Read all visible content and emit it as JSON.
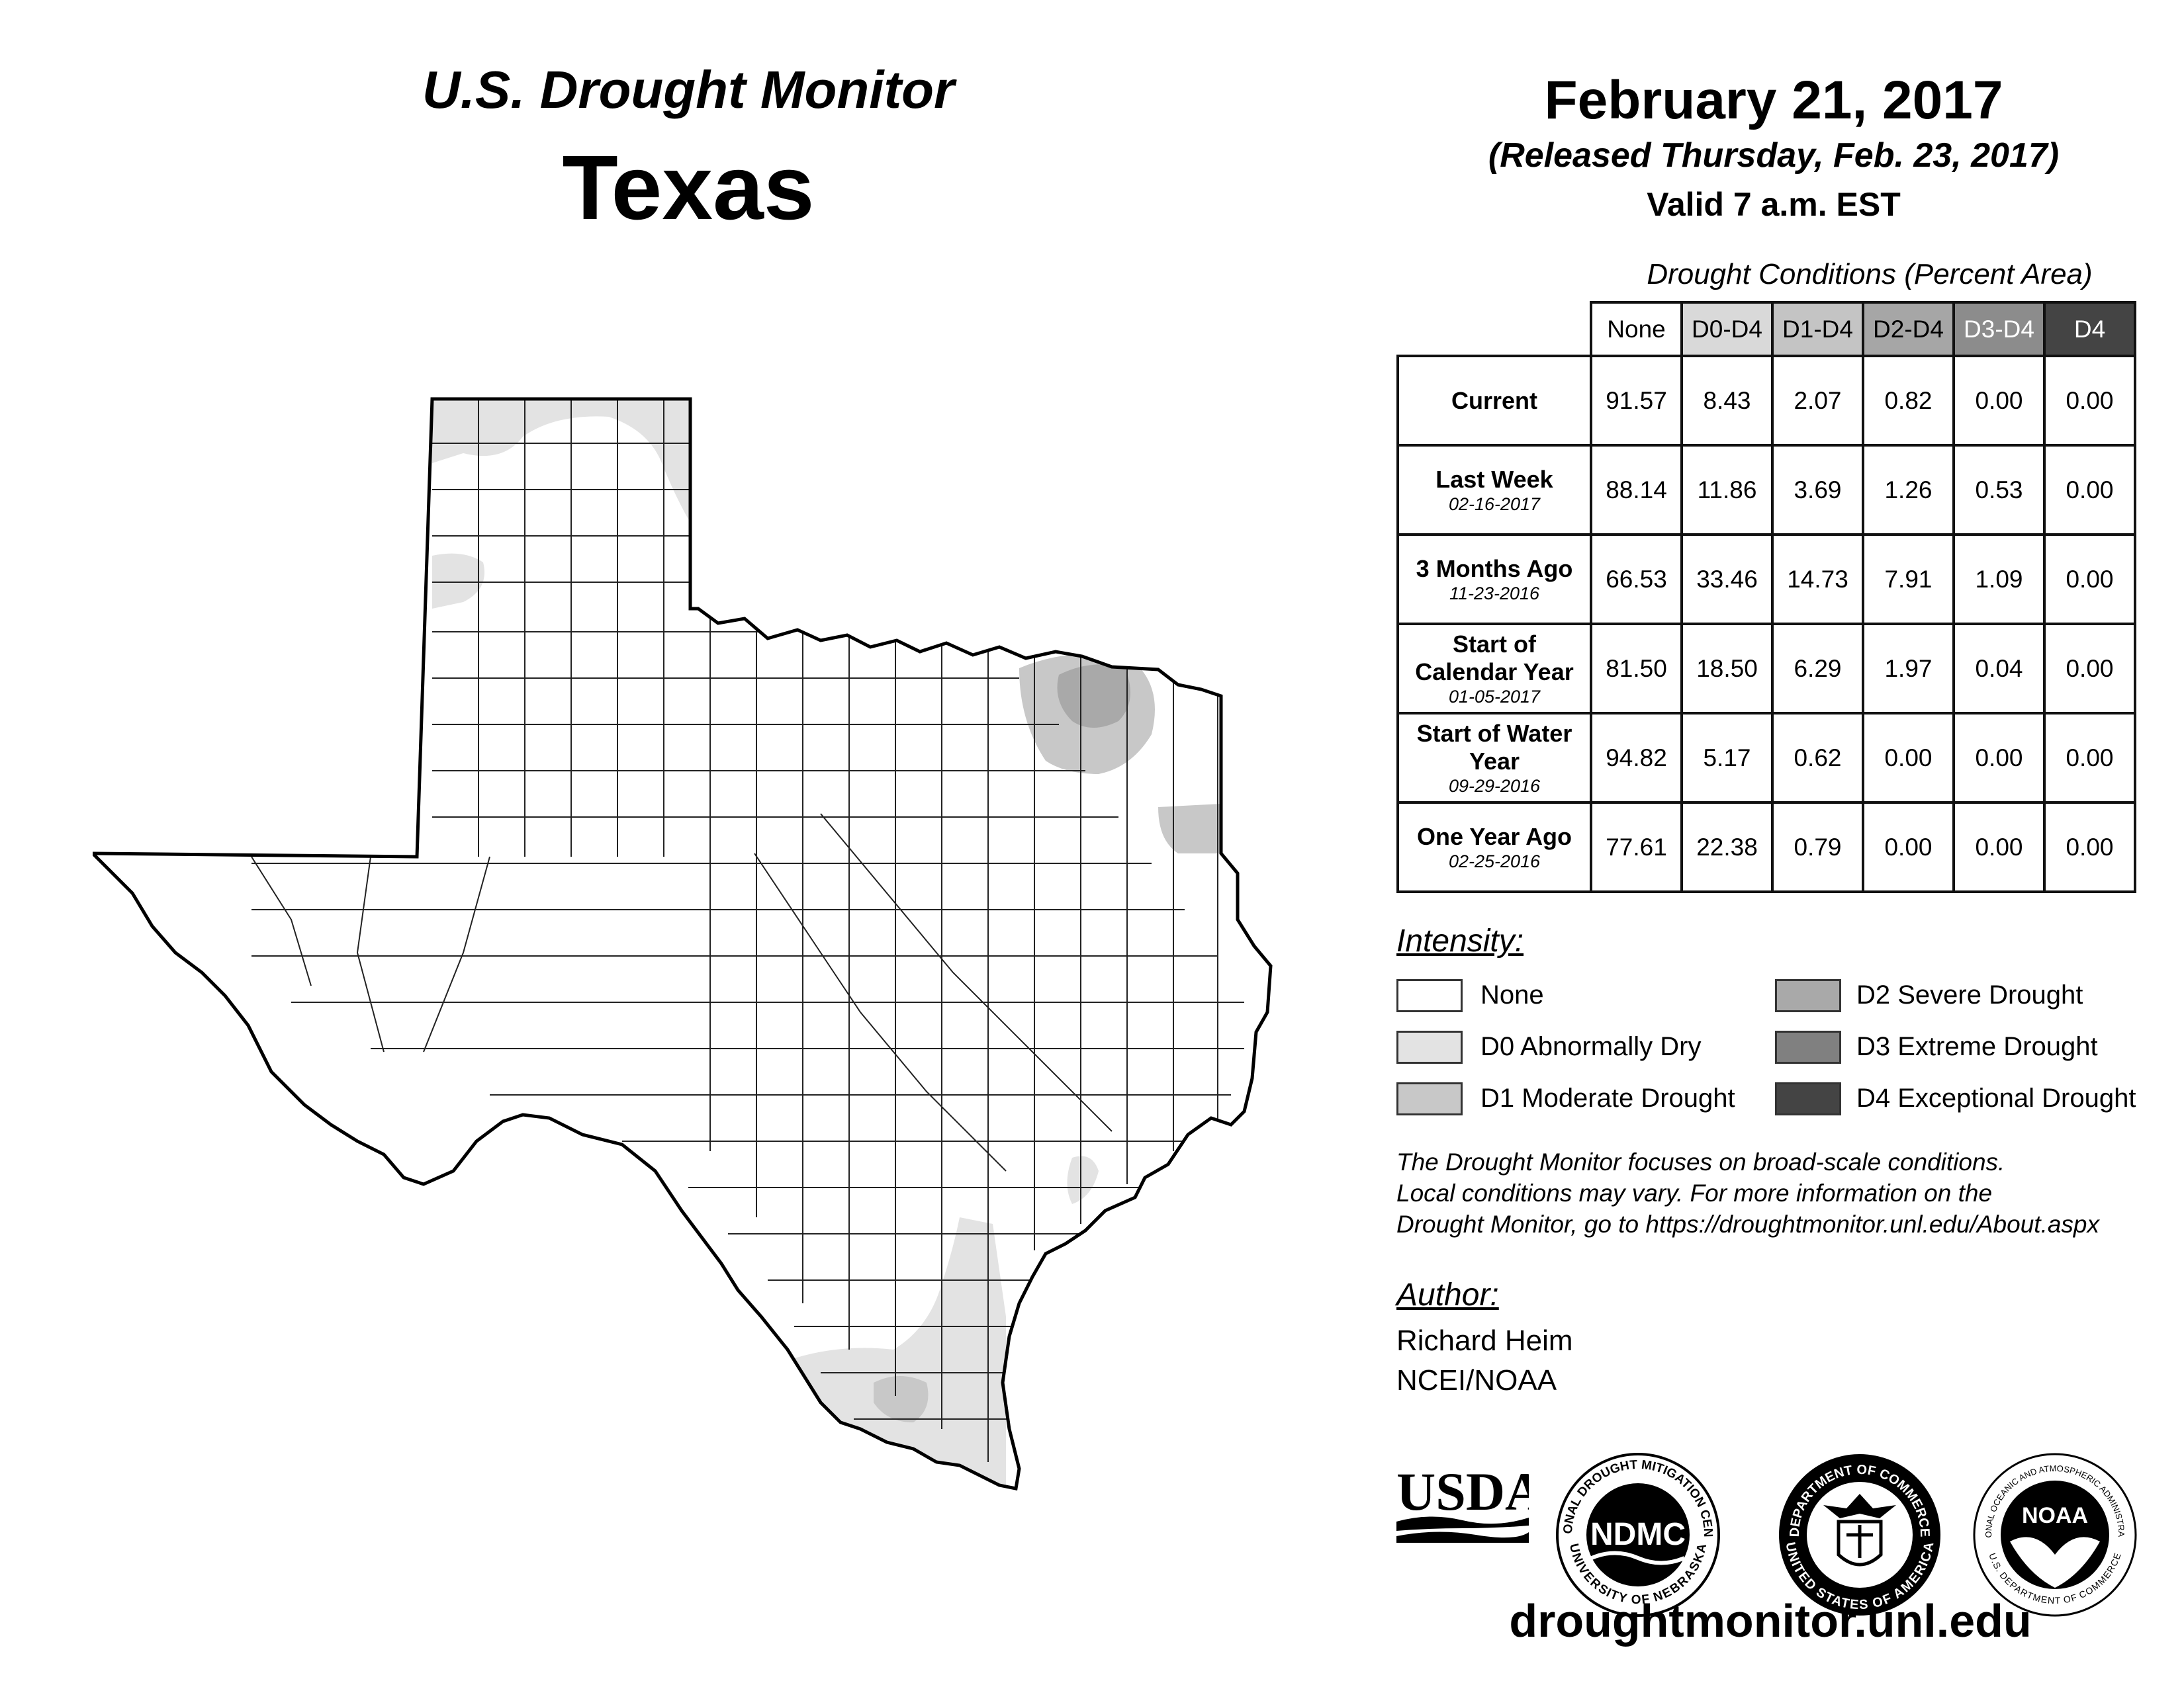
{
  "header": {
    "monitor_title": "U.S. Drought Monitor",
    "state": "Texas",
    "map_date": "February 21, 2017",
    "released": "(Released Thursday, Feb. 23, 2017)",
    "valid": "Valid 7 a.m. EST"
  },
  "table": {
    "caption": "Drought Conditions (Percent Area)",
    "columns": [
      "None",
      "D0-D4",
      "D1-D4",
      "D2-D4",
      "D3-D4",
      "D4"
    ],
    "column_colors": [
      "#ffffff",
      "#d9d9d9",
      "#c4c4c4",
      "#a6a6a6",
      "#8c8c8c",
      "#444444"
    ],
    "rows": [
      {
        "label": "Current",
        "date": "",
        "values": [
          "91.57",
          "8.43",
          "2.07",
          "0.82",
          "0.00",
          "0.00"
        ]
      },
      {
        "label": "Last Week",
        "date": "02-16-2017",
        "values": [
          "88.14",
          "11.86",
          "3.69",
          "1.26",
          "0.53",
          "0.00"
        ]
      },
      {
        "label": "3 Months Ago",
        "date": "11-23-2016",
        "values": [
          "66.53",
          "33.46",
          "14.73",
          "7.91",
          "1.09",
          "0.00"
        ]
      },
      {
        "label": "Start of Calendar Year",
        "date": "01-05-2017",
        "values": [
          "81.50",
          "18.50",
          "6.29",
          "1.97",
          "0.04",
          "0.00"
        ]
      },
      {
        "label": "Start of Water Year",
        "date": "09-29-2016",
        "values": [
          "94.82",
          "5.17",
          "0.62",
          "0.00",
          "0.00",
          "0.00"
        ]
      },
      {
        "label": "One Year Ago",
        "date": "02-25-2016",
        "values": [
          "77.61",
          "22.38",
          "0.79",
          "0.00",
          "0.00",
          "0.00"
        ]
      }
    ]
  },
  "legend": {
    "title": "Intensity:",
    "items": [
      {
        "label": "None",
        "color": "#ffffff"
      },
      {
        "label": "D0 Abnormally Dry",
        "color": "#e3e3e3"
      },
      {
        "label": "D1 Moderate Drought",
        "color": "#c8c8c8"
      },
      {
        "label": "D2 Severe Drought",
        "color": "#a9a9a9"
      },
      {
        "label": "D3 Extreme Drought",
        "color": "#808080"
      },
      {
        "label": "D4 Exceptional Drought",
        "color": "#444444"
      }
    ]
  },
  "note": {
    "lines": [
      "The Drought Monitor focuses on broad-scale conditions.",
      "Local conditions may vary. For more information on the",
      "Drought Monitor, go to https://droughtmonitor.unl.edu/About.aspx"
    ]
  },
  "author": {
    "title": "Author:",
    "name": "Richard Heim",
    "org": "NCEI/NOAA"
  },
  "logos": {
    "usda": "USDA",
    "ndmc": "NDMC",
    "ndmc_ring_top": "NATIONAL DROUGHT MITIGATION CENTER",
    "ndmc_ring_bottom": "UNIVERSITY OF NEBRASKA",
    "doc_ring_top": "DEPARTMENT OF COMMERCE",
    "doc_ring_bottom": "UNITED STATES OF AMERICA",
    "noaa": "NOAA",
    "noaa_ring_top": "NATIONAL OCEANIC AND ATMOSPHERIC ADMINISTRATION",
    "noaa_ring_bottom": "U.S. DEPARTMENT OF COMMERCE"
  },
  "footer": {
    "url": "droughtmonitor.unl.edu"
  }
}
